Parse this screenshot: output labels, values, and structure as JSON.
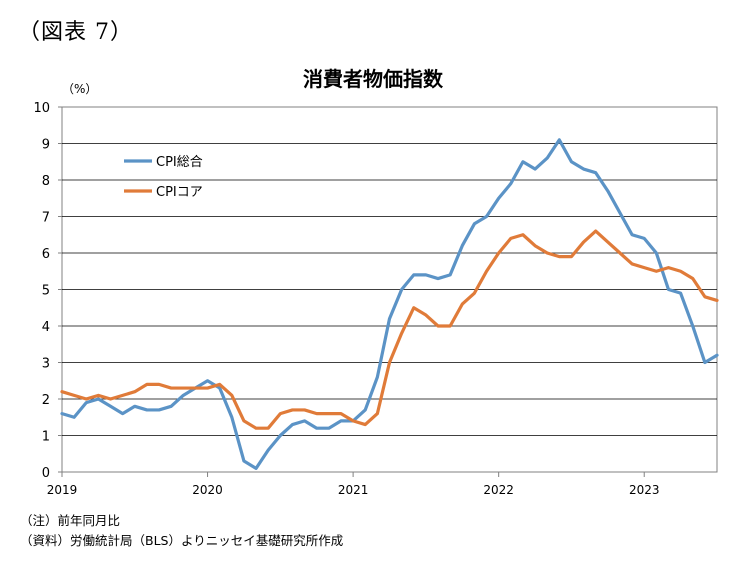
{
  "figure_label": "（図表 7）",
  "notes": [
    "（注）前年同月比",
    "（資料）労働統計局（BLS）よりニッセイ基礎研究所作成"
  ],
  "chart_data": {
    "type": "line",
    "title": "消費者物価指数",
    "ylabel": "（%）",
    "xlabel": "",
    "ylim": [
      0,
      10
    ],
    "yticks": [
      0,
      1,
      2,
      3,
      4,
      5,
      6,
      7,
      8,
      9,
      10
    ],
    "xlim": [
      "2019-01",
      "2023-07"
    ],
    "xticks": [
      "2019",
      "2020",
      "2021",
      "2022",
      "2023"
    ],
    "grid": true,
    "legend_position": "top-left",
    "x": [
      "2019-01",
      "2019-02",
      "2019-03",
      "2019-04",
      "2019-05",
      "2019-06",
      "2019-07",
      "2019-08",
      "2019-09",
      "2019-10",
      "2019-11",
      "2019-12",
      "2020-01",
      "2020-02",
      "2020-03",
      "2020-04",
      "2020-05",
      "2020-06",
      "2020-07",
      "2020-08",
      "2020-09",
      "2020-10",
      "2020-11",
      "2020-12",
      "2021-01",
      "2021-02",
      "2021-03",
      "2021-04",
      "2021-05",
      "2021-06",
      "2021-07",
      "2021-08",
      "2021-09",
      "2021-10",
      "2021-11",
      "2021-12",
      "2022-01",
      "2022-02",
      "2022-03",
      "2022-04",
      "2022-05",
      "2022-06",
      "2022-07",
      "2022-08",
      "2022-09",
      "2022-10",
      "2022-11",
      "2022-12",
      "2023-01",
      "2023-02",
      "2023-03",
      "2023-04",
      "2023-05",
      "2023-06",
      "2023-07"
    ],
    "series": [
      {
        "name": "CPI総合",
        "color": "#5b93c6",
        "values": [
          1.6,
          1.5,
          1.9,
          2.0,
          1.8,
          1.6,
          1.8,
          1.7,
          1.7,
          1.8,
          2.1,
          2.3,
          2.5,
          2.3,
          1.5,
          0.3,
          0.1,
          0.6,
          1.0,
          1.3,
          1.4,
          1.2,
          1.2,
          1.4,
          1.4,
          1.7,
          2.6,
          4.2,
          5.0,
          5.4,
          5.4,
          5.3,
          5.4,
          6.2,
          6.8,
          7.0,
          7.5,
          7.9,
          8.5,
          8.3,
          8.6,
          9.1,
          8.5,
          8.3,
          8.2,
          7.7,
          7.1,
          6.5,
          6.4,
          6.0,
          5.0,
          4.9,
          4.0,
          3.0,
          3.2
        ]
      },
      {
        "name": "CPIコア",
        "color": "#e07b39",
        "values": [
          2.2,
          2.1,
          2.0,
          2.1,
          2.0,
          2.1,
          2.2,
          2.4,
          2.4,
          2.3,
          2.3,
          2.3,
          2.3,
          2.4,
          2.1,
          1.4,
          1.2,
          1.2,
          1.6,
          1.7,
          1.7,
          1.6,
          1.6,
          1.6,
          1.4,
          1.3,
          1.6,
          3.0,
          3.8,
          4.5,
          4.3,
          4.0,
          4.0,
          4.6,
          4.9,
          5.5,
          6.0,
          6.4,
          6.5,
          6.2,
          6.0,
          5.9,
          5.9,
          6.3,
          6.6,
          6.3,
          6.0,
          5.7,
          5.6,
          5.5,
          5.6,
          5.5,
          5.3,
          4.8,
          4.7
        ]
      }
    ]
  }
}
